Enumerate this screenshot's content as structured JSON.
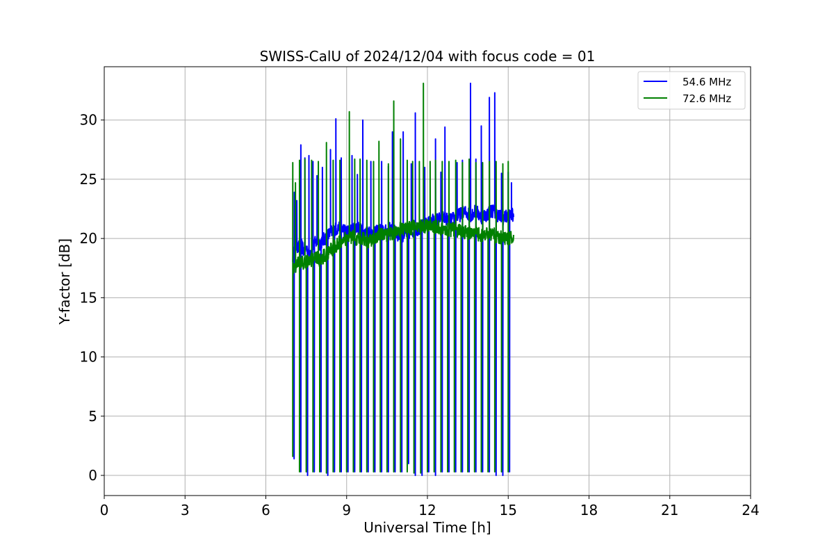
{
  "chart_data": {
    "type": "line",
    "title": "SWISS-CalU of 2024/12/04 with focus code = 01",
    "xlabel": "Universal Time [h]",
    "ylabel": "Y-factor [dB]",
    "xlim": [
      0,
      24
    ],
    "ylim": [
      -1.7,
      34.5
    ],
    "xticks": [
      0,
      3,
      6,
      9,
      12,
      15,
      18,
      21,
      24
    ],
    "yticks": [
      0,
      5,
      10,
      15,
      20,
      25,
      30
    ],
    "grid": true,
    "legend_position": "top-right",
    "series": [
      {
        "name": "54.6 MHz",
        "color": "#0000ff",
        "x": [
          7.0,
          7.05,
          7.1,
          7.15,
          7.2,
          7.3,
          7.4,
          7.5,
          7.6,
          7.7,
          7.8,
          7.9,
          8.0,
          8.2,
          8.4,
          8.6,
          8.8,
          9.0,
          9.2,
          9.4,
          9.6,
          9.8,
          10.0,
          10.2,
          10.4,
          10.6,
          10.8,
          11.0,
          11.2,
          11.4,
          11.6,
          11.8,
          12.0,
          12.2,
          12.4,
          12.6,
          12.8,
          13.0,
          13.2,
          13.4,
          13.6,
          13.8,
          14.0,
          14.2,
          14.4,
          14.6,
          14.8,
          15.0,
          15.2
        ],
        "y": [
          18.5,
          19.0,
          19.3,
          19.5,
          19.2,
          19.5,
          19.0,
          19.2,
          18.8,
          19.0,
          19.5,
          19.8,
          19.6,
          20.0,
          20.5,
          20.8,
          21.0,
          20.5,
          20.7,
          21.0,
          20.5,
          20.6,
          20.3,
          20.7,
          20.5,
          20.8,
          20.5,
          20.2,
          20.4,
          20.6,
          20.8,
          21.0,
          21.2,
          21.5,
          21.6,
          21.8,
          21.5,
          21.7,
          22.0,
          22.2,
          22.0,
          22.3,
          21.8,
          22.0,
          22.4,
          22.0,
          21.7,
          21.9,
          22.0
        ],
        "spikes_up": [
          [
            7.06,
            23.9
          ],
          [
            7.15,
            23.2
          ],
          [
            7.3,
            27.9
          ],
          [
            7.45,
            26.8
          ],
          [
            7.6,
            27.0
          ],
          [
            7.75,
            26.5
          ],
          [
            7.9,
            25.3
          ],
          [
            8.1,
            26.0
          ],
          [
            8.4,
            27.5
          ],
          [
            8.6,
            30.1
          ],
          [
            8.8,
            26.8
          ],
          [
            9.2,
            27.0
          ],
          [
            9.4,
            25.4
          ],
          [
            9.6,
            30.0
          ],
          [
            9.9,
            26.5
          ],
          [
            10.3,
            26.5
          ],
          [
            10.55,
            26.1
          ],
          [
            10.7,
            29.0
          ],
          [
            11.1,
            29.0
          ],
          [
            11.4,
            26.3
          ],
          [
            11.55,
            30.6
          ],
          [
            11.9,
            26.0
          ],
          [
            12.3,
            28.4
          ],
          [
            12.5,
            25.6
          ],
          [
            12.65,
            29.4
          ],
          [
            13.1,
            26.4
          ],
          [
            13.3,
            26.6
          ],
          [
            13.6,
            33.1
          ],
          [
            13.8,
            26.7
          ],
          [
            14.0,
            29.5
          ],
          [
            14.3,
            31.9
          ],
          [
            14.5,
            32.3
          ],
          [
            14.75,
            25.5
          ],
          [
            15.0,
            25.6
          ],
          [
            15.12,
            24.7
          ],
          [
            15.2,
            24.5
          ]
        ],
        "spikes_down": [
          [
            7.05,
            1.4
          ],
          [
            7.3,
            0.3
          ],
          [
            7.55,
            0.0
          ],
          [
            7.8,
            0.3
          ],
          [
            8.05,
            0.3
          ],
          [
            8.3,
            0.0
          ],
          [
            8.55,
            0.3
          ],
          [
            8.8,
            0.3
          ],
          [
            9.05,
            0.3
          ],
          [
            9.3,
            0.3
          ],
          [
            9.55,
            0.3
          ],
          [
            9.8,
            0.3
          ],
          [
            10.05,
            0.3
          ],
          [
            10.3,
            0.3
          ],
          [
            10.55,
            0.3
          ],
          [
            10.8,
            0.3
          ],
          [
            11.05,
            0.3
          ],
          [
            11.3,
            1.0
          ],
          [
            11.55,
            0.0
          ],
          [
            11.8,
            0.0
          ],
          [
            12.05,
            0.3
          ],
          [
            12.3,
            0.0
          ],
          [
            12.55,
            0.3
          ],
          [
            12.8,
            0.3
          ],
          [
            13.05,
            0.3
          ],
          [
            13.3,
            0.3
          ],
          [
            13.55,
            0.3
          ],
          [
            13.8,
            0.3
          ],
          [
            14.05,
            0.3
          ],
          [
            14.3,
            0.3
          ],
          [
            14.55,
            0.0
          ],
          [
            14.8,
            0.0
          ],
          [
            15.05,
            0.3
          ]
        ]
      },
      {
        "name": "72.6 MHz",
        "color": "#008000",
        "x": [
          7.0,
          7.05,
          7.1,
          7.15,
          7.2,
          7.3,
          7.4,
          7.5,
          7.6,
          7.7,
          7.8,
          7.9,
          8.0,
          8.2,
          8.4,
          8.6,
          8.8,
          9.0,
          9.2,
          9.4,
          9.6,
          9.8,
          10.0,
          10.2,
          10.4,
          10.6,
          10.8,
          11.0,
          11.2,
          11.4,
          11.6,
          11.8,
          12.0,
          12.2,
          12.4,
          12.6,
          12.8,
          13.0,
          13.2,
          13.4,
          13.6,
          13.8,
          14.0,
          14.2,
          14.4,
          14.6,
          14.8,
          15.0,
          15.2
        ],
        "y": [
          17.3,
          17.5,
          17.6,
          17.8,
          17.9,
          18.0,
          17.9,
          18.1,
          18.2,
          18.1,
          18.3,
          18.4,
          18.2,
          18.6,
          19.0,
          19.4,
          19.8,
          20.0,
          20.2,
          19.9,
          20.1,
          19.8,
          20.0,
          20.3,
          20.2,
          20.4,
          20.6,
          20.8,
          20.8,
          20.9,
          21.0,
          21.0,
          21.1,
          21.0,
          20.9,
          20.8,
          20.7,
          20.8,
          20.6,
          20.5,
          20.4,
          20.5,
          20.2,
          20.3,
          20.4,
          20.2,
          20.1,
          20.0,
          20.0
        ],
        "spikes_up": [
          [
            7.0,
            26.4
          ],
          [
            7.1,
            24.7
          ],
          [
            7.25,
            26.6
          ],
          [
            7.45,
            26.7
          ],
          [
            7.7,
            26.6
          ],
          [
            7.95,
            26.5
          ],
          [
            8.25,
            28.1
          ],
          [
            8.5,
            26.6
          ],
          [
            8.75,
            26.6
          ],
          [
            9.1,
            30.7
          ],
          [
            9.3,
            26.7
          ],
          [
            9.5,
            26.7
          ],
          [
            9.75,
            26.6
          ],
          [
            10.0,
            26.5
          ],
          [
            10.2,
            28.2
          ],
          [
            10.55,
            26.3
          ],
          [
            10.75,
            31.6
          ],
          [
            11.0,
            28.4
          ],
          [
            11.25,
            26.6
          ],
          [
            11.45,
            26.5
          ],
          [
            11.7,
            26.5
          ],
          [
            11.85,
            33.1
          ],
          [
            12.1,
            26.5
          ],
          [
            12.3,
            26.6
          ],
          [
            12.55,
            26.5
          ],
          [
            12.8,
            26.5
          ],
          [
            13.05,
            26.6
          ],
          [
            13.3,
            26.4
          ],
          [
            13.55,
            26.7
          ],
          [
            13.8,
            26.4
          ],
          [
            14.05,
            26.4
          ],
          [
            14.3,
            26.5
          ],
          [
            14.55,
            26.5
          ],
          [
            14.8,
            26.3
          ],
          [
            15.0,
            26.5
          ],
          [
            15.2,
            24.6
          ]
        ],
        "spikes_down": [
          [
            7.0,
            1.6
          ],
          [
            7.25,
            0.3
          ],
          [
            7.5,
            0.3
          ],
          [
            7.75,
            0.3
          ],
          [
            8.0,
            0.3
          ],
          [
            8.25,
            0.2
          ],
          [
            8.5,
            0.3
          ],
          [
            8.75,
            0.3
          ],
          [
            9.0,
            0.3
          ],
          [
            9.25,
            0.3
          ],
          [
            9.5,
            0.3
          ],
          [
            9.75,
            0.3
          ],
          [
            10.0,
            0.3
          ],
          [
            10.25,
            0.3
          ],
          [
            10.5,
            0.3
          ],
          [
            10.75,
            0.3
          ],
          [
            11.0,
            0.3
          ],
          [
            11.25,
            0.3
          ],
          [
            11.5,
            0.2
          ],
          [
            11.75,
            0.2
          ],
          [
            12.0,
            0.3
          ],
          [
            12.25,
            0.3
          ],
          [
            12.5,
            0.3
          ],
          [
            12.75,
            0.3
          ],
          [
            13.0,
            0.3
          ],
          [
            13.25,
            0.3
          ],
          [
            13.5,
            0.3
          ],
          [
            13.75,
            0.3
          ],
          [
            14.0,
            0.3
          ],
          [
            14.25,
            0.3
          ],
          [
            14.5,
            0.3
          ],
          [
            14.75,
            0.3
          ],
          [
            15.0,
            0.3
          ]
        ]
      }
    ]
  }
}
